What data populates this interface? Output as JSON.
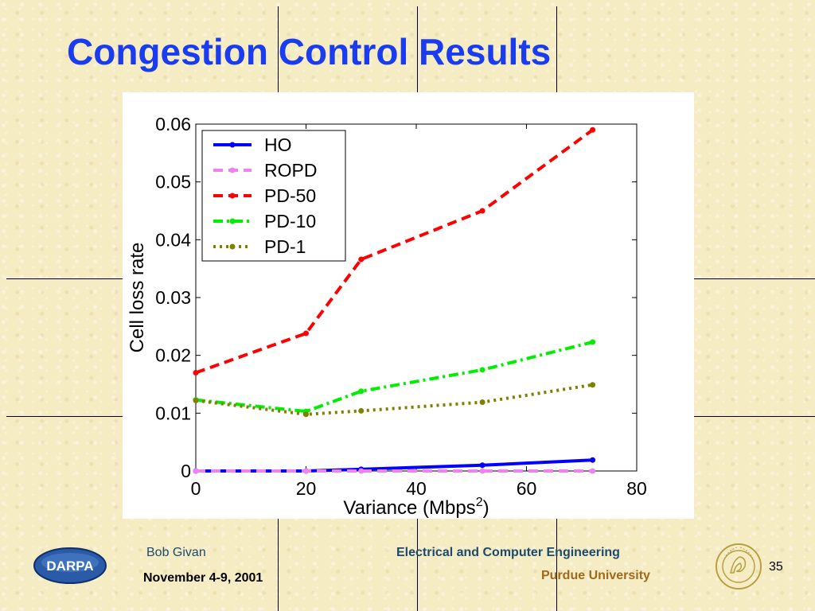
{
  "slide": {
    "title": "Congestion Control Results",
    "author": "Bob Givan",
    "date": "November 4-9, 2001",
    "department": "Electrical and Computer Engineering",
    "university": "Purdue University",
    "page_number": "35",
    "darpa_logo_text": "DARPA",
    "colors": {
      "title": "#1a3cf0",
      "background": "#f6ecc4"
    }
  },
  "chart_data": {
    "type": "line",
    "title": "",
    "xlabel": "Variance (Mbps",
    "xlabel_sup": "2",
    "xlabel_close": ")",
    "ylabel": "Cell loss rate",
    "xlim": [
      0,
      80
    ],
    "ylim": [
      0,
      0.06
    ],
    "xticks": [
      0,
      20,
      40,
      60,
      80
    ],
    "yticks": [
      0,
      0.01,
      0.02,
      0.03,
      0.04,
      0.05,
      0.06
    ],
    "xtick_labels": [
      "0",
      "20",
      "40",
      "60",
      "80"
    ],
    "ytick_labels": [
      "0",
      "0.01",
      "0.02",
      "0.03",
      "0.04",
      "0.05",
      "0.06"
    ],
    "grid": false,
    "legend_position": "top-left",
    "series": [
      {
        "name": "HO",
        "color": "#0000ff",
        "dash": "solid",
        "x": [
          0,
          20,
          30,
          52,
          72
        ],
        "y": [
          0,
          0,
          0.0003,
          0.001,
          0.0019
        ]
      },
      {
        "name": "ROPD",
        "color": "#ee82ee",
        "dash": "dashed",
        "x": [
          0,
          20,
          30,
          52,
          72
        ],
        "y": [
          0,
          0,
          0,
          0,
          0
        ]
      },
      {
        "name": "PD-50",
        "color": "#ff0000",
        "dash": "dashed",
        "x": [
          0,
          20,
          30,
          52,
          72
        ],
        "y": [
          0.017,
          0.0238,
          0.0366,
          0.045,
          0.059
        ]
      },
      {
        "name": "PD-10",
        "color": "#00ee00",
        "dash": "dashdot",
        "x": [
          0,
          20,
          30,
          52,
          72
        ],
        "y": [
          0.0123,
          0.0103,
          0.0138,
          0.0175,
          0.0223
        ]
      },
      {
        "name": "PD-1",
        "color": "#808000",
        "dash": "dotted",
        "x": [
          0,
          20,
          30,
          52,
          72
        ],
        "y": [
          0.0122,
          0.0098,
          0.0104,
          0.0119,
          0.0149
        ]
      }
    ]
  }
}
